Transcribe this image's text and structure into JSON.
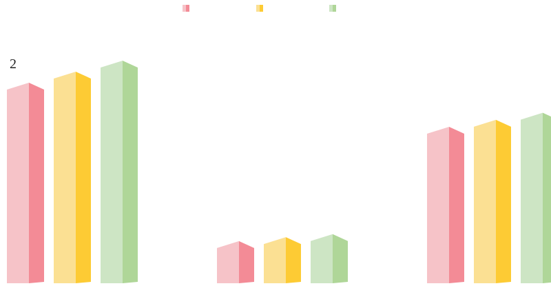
{
  "chart_data": {
    "type": "bar",
    "categories": [
      "",
      "",
      ""
    ],
    "series": [
      {
        "name": "",
        "values": [
          2.0,
          0.42,
          1.56
        ],
        "color_front": "#f6c3c8",
        "color_side": "#f38b96"
      },
      {
        "name": "",
        "values": [
          2.11,
          0.46,
          1.63
        ],
        "color_front": "#fbe093",
        "color_side": "#fdcb34"
      },
      {
        "name": "",
        "values": [
          2.22,
          0.49,
          1.7
        ],
        "color_front": "#cde5c4",
        "color_side": "#afd698"
      }
    ],
    "data_labels": [
      "2"
    ],
    "ylim": [
      0,
      2.3
    ],
    "legend": "top-center",
    "grid": false,
    "title": "",
    "xlabel": "",
    "ylabel": ""
  }
}
